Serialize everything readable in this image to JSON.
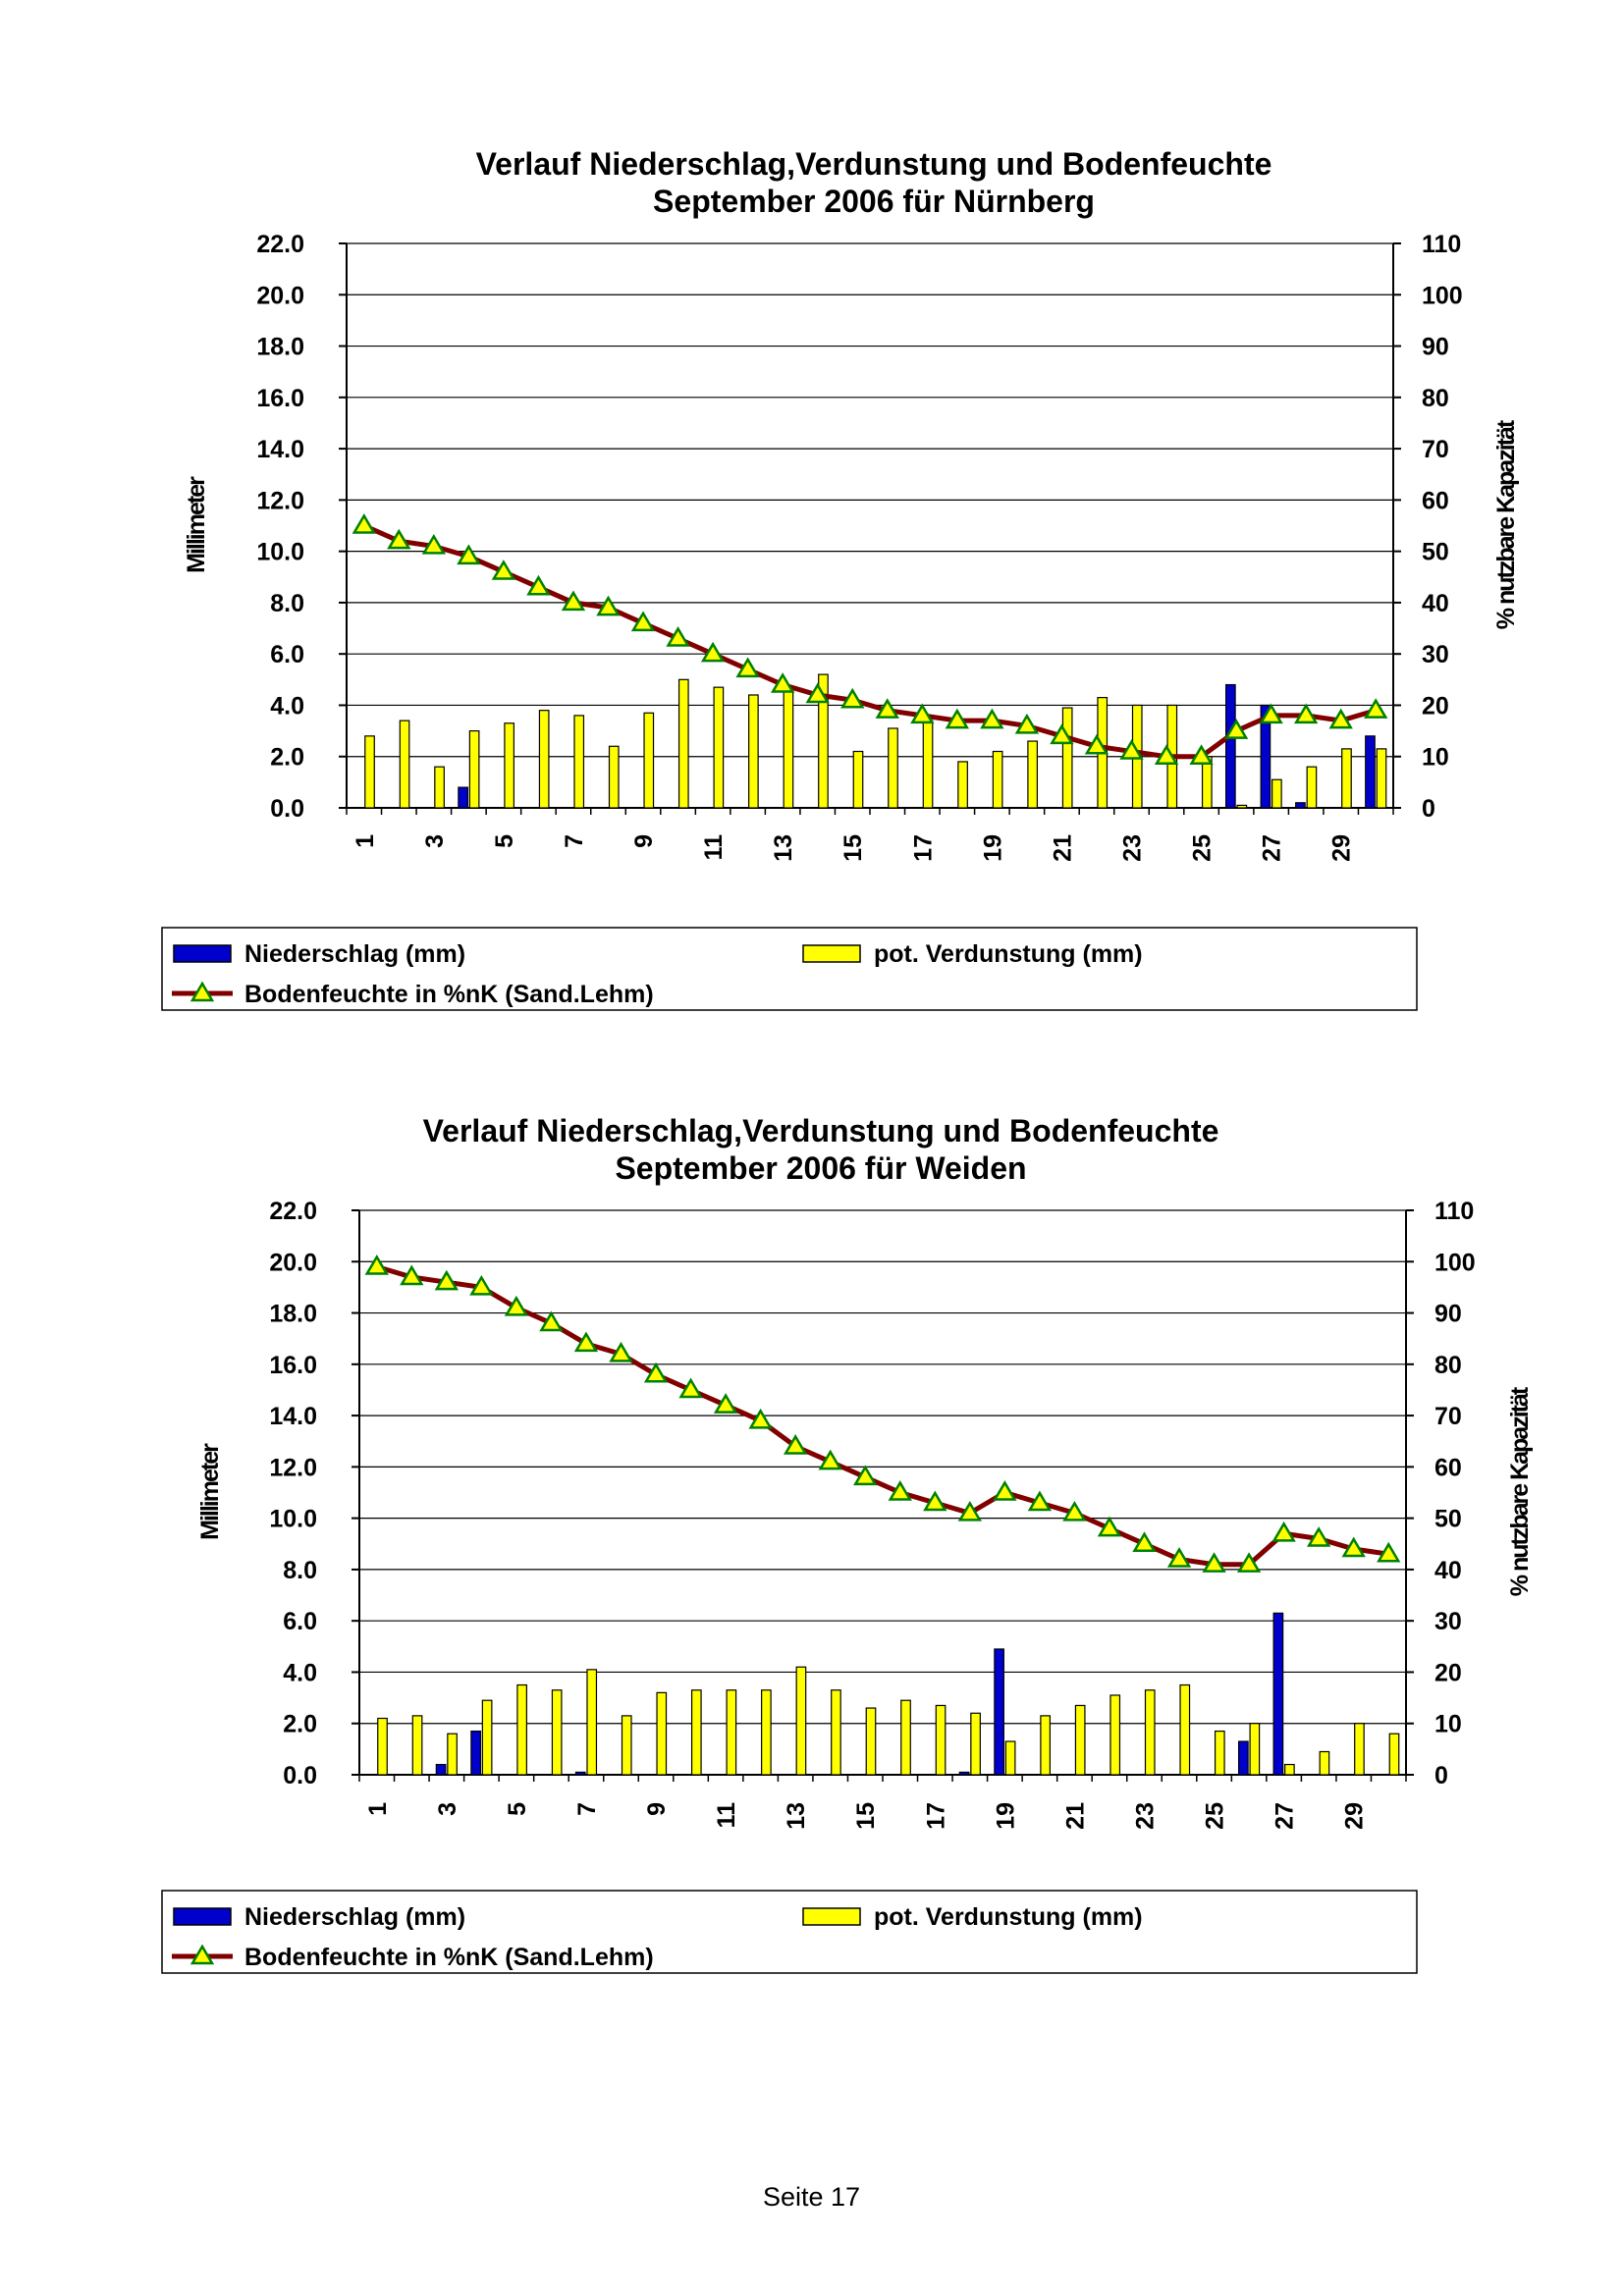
{
  "page_number": "Seite 17",
  "legend": {
    "precip": "Niederschlag (mm)",
    "evap": "pot. Verdunstung (mm)",
    "soil": "Bodenfeuchte in %nK (Sand.Lehm)"
  },
  "colors": {
    "precip": "#0000cc",
    "evap": "#ffff00",
    "soil_line": "#800000",
    "soil_marker": "#ffff00",
    "soil_marker_edge": "#008000"
  },
  "chart_data": [
    {
      "type": "bar",
      "title": [
        "Verlauf Niederschlag,Verdunstung und Bodenfeuchte",
        "September 2006 für Nürnberg"
      ],
      "ylabel": "Millimeter",
      "y2label": "% nutzbare Kapazität",
      "ylim": [
        0,
        22
      ],
      "y2lim": [
        0,
        110
      ],
      "yticks": [
        "0.0",
        "2.0",
        "4.0",
        "6.0",
        "8.0",
        "10.0",
        "12.0",
        "14.0",
        "16.0",
        "18.0",
        "20.0",
        "22.0"
      ],
      "y2ticks": [
        "0",
        "10",
        "20",
        "30",
        "40",
        "50",
        "60",
        "70",
        "80",
        "90",
        "100",
        "110"
      ],
      "xticks": [
        "1",
        "3",
        "5",
        "7",
        "9",
        "11",
        "13",
        "15",
        "17",
        "19",
        "21",
        "23",
        "25",
        "27",
        "29"
      ],
      "x": [
        1,
        2,
        3,
        4,
        5,
        6,
        7,
        8,
        9,
        10,
        11,
        12,
        13,
        14,
        15,
        16,
        17,
        18,
        19,
        20,
        21,
        22,
        23,
        24,
        25,
        26,
        27,
        28,
        29,
        30
      ],
      "series": [
        {
          "name": "Niederschlag (mm)",
          "axis": "left",
          "kind": "bar",
          "values": [
            0,
            0,
            0,
            0.8,
            0,
            0,
            0,
            0,
            0,
            0,
            0,
            0,
            0,
            0,
            0,
            0,
            0,
            0,
            0,
            0,
            0,
            0,
            0,
            0,
            0,
            4.8,
            4.0,
            0.2,
            0,
            2.8
          ]
        },
        {
          "name": "pot. Verdunstung (mm)",
          "axis": "left",
          "kind": "bar",
          "values": [
            2.8,
            3.4,
            1.6,
            3.0,
            3.3,
            3.8,
            3.6,
            2.4,
            3.7,
            5.0,
            4.7,
            4.4,
            4.7,
            5.2,
            2.2,
            3.1,
            3.4,
            1.8,
            2.2,
            2.6,
            3.9,
            4.3,
            4.0,
            4.0,
            2.0,
            0.1,
            1.1,
            1.6,
            2.3,
            2.3
          ]
        },
        {
          "name": "Bodenfeuchte in %nK (Sand.Lehm)",
          "axis": "right",
          "kind": "line",
          "values": [
            55,
            52,
            51,
            49,
            46,
            43,
            40,
            39,
            36,
            33,
            30,
            27,
            24,
            22,
            21,
            19,
            18,
            17,
            17,
            16,
            14,
            12,
            11,
            10,
            10,
            15,
            18,
            18,
            17,
            19
          ]
        }
      ]
    },
    {
      "type": "bar",
      "title": [
        "Verlauf Niederschlag,Verdunstung und Bodenfeuchte",
        "September 2006 für Weiden"
      ],
      "ylabel": "Millimeter",
      "y2label": "% nutzbare Kapazität",
      "ylim": [
        0,
        22
      ],
      "y2lim": [
        0,
        110
      ],
      "yticks": [
        "0.0",
        "2.0",
        "4.0",
        "6.0",
        "8.0",
        "10.0",
        "12.0",
        "14.0",
        "16.0",
        "18.0",
        "20.0",
        "22.0"
      ],
      "y2ticks": [
        "0",
        "10",
        "20",
        "30",
        "40",
        "50",
        "60",
        "70",
        "80",
        "90",
        "100",
        "110"
      ],
      "xticks": [
        "1",
        "3",
        "5",
        "7",
        "9",
        "11",
        "13",
        "15",
        "17",
        "19",
        "21",
        "23",
        "25",
        "27",
        "29"
      ],
      "x": [
        1,
        2,
        3,
        4,
        5,
        6,
        7,
        8,
        9,
        10,
        11,
        12,
        13,
        14,
        15,
        16,
        17,
        18,
        19,
        20,
        21,
        22,
        23,
        24,
        25,
        26,
        27,
        28,
        29,
        30
      ],
      "series": [
        {
          "name": "Niederschlag (mm)",
          "axis": "left",
          "kind": "bar",
          "values": [
            0,
            0,
            0.4,
            1.7,
            0,
            0,
            0.1,
            0,
            0,
            0,
            0,
            0,
            0,
            0,
            0,
            0,
            0,
            0.1,
            4.9,
            0,
            0,
            0,
            0,
            0,
            0,
            1.3,
            6.3,
            0,
            0,
            0
          ]
        },
        {
          "name": "pot. Verdunstung (mm)",
          "axis": "left",
          "kind": "bar",
          "values": [
            2.2,
            2.3,
            1.6,
            2.9,
            3.5,
            3.3,
            4.1,
            2.3,
            3.2,
            3.3,
            3.3,
            3.3,
            4.2,
            3.3,
            2.6,
            2.9,
            2.7,
            2.4,
            1.3,
            2.3,
            2.7,
            3.1,
            3.3,
            3.5,
            1.7,
            2.0,
            0.4,
            0.9,
            2.0,
            1.6
          ]
        },
        {
          "name": "Bodenfeuchte in %nK (Sand.Lehm)",
          "axis": "right",
          "kind": "line",
          "values": [
            99,
            97,
            96,
            95,
            91,
            88,
            84,
            82,
            78,
            75,
            72,
            69,
            64,
            61,
            58,
            55,
            53,
            51,
            55,
            53,
            51,
            48,
            45,
            42,
            41,
            41,
            47,
            46,
            44,
            43
          ]
        }
      ]
    }
  ]
}
